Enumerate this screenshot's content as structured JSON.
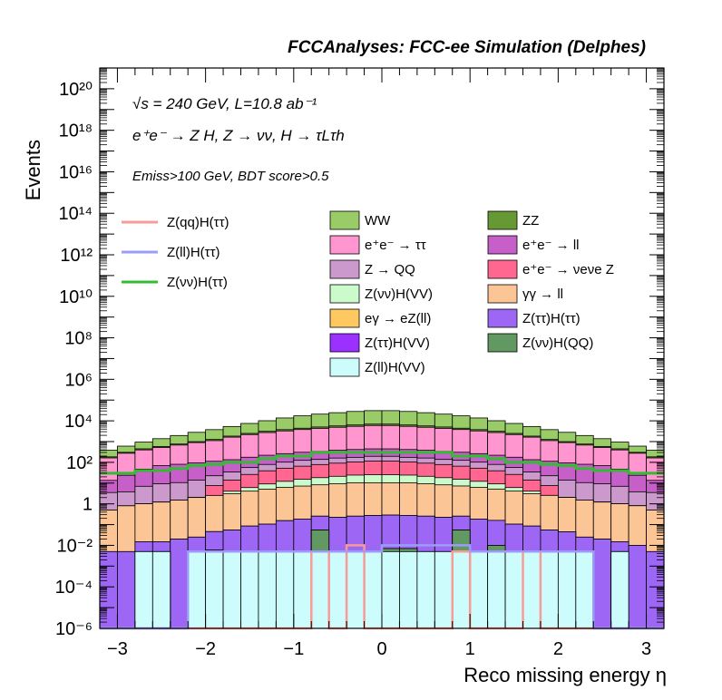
{
  "chart_data": {
    "type": "stacked-histogram",
    "title": "FCCAnalyses: FCC-ee Simulation (Delphes)",
    "annotations": {
      "energy_lumi": "√s = 240 GeV, L=10.8 ab⁻¹",
      "process": "e⁺e⁻ → Z H, Z → νν, H → τLτh",
      "selection": "Emiss>100 GeV, BDT score>0.5"
    },
    "xlabel": "Reco missing energy η",
    "ylabel": "Events",
    "xlim": [
      -3.2,
      3.2
    ],
    "ylim": [
      1e-06,
      1e+21
    ],
    "yscale": "log",
    "x_ticks": [
      "−3",
      "−2",
      "−1",
      "0",
      "1",
      "2",
      "3"
    ],
    "y_ticks": [
      "10⁻⁶",
      "10⁻⁴",
      "10⁻²",
      "1",
      "10²",
      "10⁴",
      "10⁶",
      "10⁸",
      "10¹⁰",
      "10¹²",
      "10¹⁴",
      "10¹⁶",
      "10¹⁸",
      "10²⁰"
    ],
    "n_bins": 32,
    "legend_position": "upper-middle",
    "stack_series": [
      {
        "name": "Z(ll)H(VV)",
        "color": "#ccfcfc",
        "values": [
          1e-06,
          1e-06,
          0.005,
          0.005,
          1e-06,
          0.005,
          0.005,
          0.005,
          0.005,
          0.005,
          0.005,
          0.005,
          0.005,
          0.005,
          0.005,
          0.005,
          0.005,
          0.005,
          0.005,
          0.005,
          0.005,
          0.005,
          0.005,
          0.005,
          0.005,
          0.005,
          0.005,
          0.005,
          1e-06,
          0.005,
          1e-06,
          1e-06
        ]
      },
      {
        "name": "Z(νν)H(QQ)",
        "color": "#629862",
        "values": [
          0,
          0,
          0,
          0,
          0,
          0,
          0,
          0,
          0,
          0,
          0,
          0,
          0.05,
          0,
          0,
          0,
          0.002,
          0.002,
          0,
          0,
          0.05,
          0,
          0.005,
          0,
          0,
          0,
          0,
          0,
          0,
          0,
          0,
          0
        ]
      },
      {
        "name": "Z(ττ)H(VV)",
        "color": "#9b30ff",
        "values": [
          0,
          0,
          0,
          0,
          0,
          0,
          0.001,
          0,
          0,
          0,
          0,
          0,
          0,
          0,
          0,
          0,
          0,
          0,
          0,
          0,
          0,
          0,
          0,
          0,
          0,
          0,
          0,
          0,
          0,
          0,
          0,
          0
        ]
      },
      {
        "name": "Z(ττ)H(ττ)",
        "color": "#9e66f5",
        "values": [
          0.005,
          0.005,
          0.01,
          0.01,
          0.02,
          0.02,
          0.04,
          0.05,
          0.08,
          0.1,
          0.15,
          0.18,
          0.2,
          0.22,
          0.25,
          0.27,
          0.28,
          0.27,
          0.25,
          0.22,
          0.2,
          0.18,
          0.15,
          0.1,
          0.08,
          0.05,
          0.04,
          0.02,
          0.02,
          0.01,
          0.01,
          0.005
        ]
      },
      {
        "name": "eγ → eZ(ll)",
        "color": "#ffc860",
        "values": [
          0,
          0,
          0,
          0,
          0,
          0,
          0,
          0,
          0,
          0,
          0,
          0,
          0,
          0,
          0,
          0,
          0,
          0,
          0,
          0,
          0,
          0,
          0,
          0,
          0,
          0,
          0,
          0,
          0,
          0,
          0,
          0
        ]
      },
      {
        "name": "γγ → ll",
        "color": "#fcc596",
        "values": [
          0.5,
          0.8,
          1,
          1.2,
          1.5,
          2,
          2.5,
          3,
          4,
          5,
          6,
          7,
          8,
          9,
          10,
          10,
          10,
          10,
          9,
          8,
          7,
          6,
          5,
          4,
          3,
          2.5,
          2,
          1.5,
          1.2,
          1,
          0.8,
          0.5
        ]
      },
      {
        "name": "Z(νν)H(VV)",
        "color": "#cbfacb",
        "values": [
          0,
          0,
          0,
          0,
          0,
          0,
          0,
          1,
          2,
          4,
          6,
          8,
          10,
          12,
          14,
          15,
          15,
          14,
          12,
          10,
          8,
          6,
          4,
          2,
          1,
          0,
          0,
          0,
          0,
          0,
          0,
          0
        ]
      },
      {
        "name": "e⁺e⁻ → νeνe Z",
        "color": "#ff6690",
        "values": [
          0,
          0,
          0,
          0,
          0,
          0,
          5,
          10,
          20,
          30,
          40,
          50,
          60,
          70,
          80,
          90,
          90,
          80,
          70,
          60,
          50,
          40,
          30,
          20,
          10,
          5,
          0,
          0,
          0,
          0,
          0,
          0
        ]
      },
      {
        "name": "Z → QQ",
        "color": "#cb99cb",
        "values": [
          3,
          3,
          6,
          8,
          9,
          12,
          15,
          20,
          30,
          40,
          50,
          60,
          60,
          70,
          70,
          80,
          80,
          70,
          70,
          60,
          60,
          50,
          40,
          30,
          20,
          15,
          12,
          9,
          8,
          6,
          3,
          3
        ]
      },
      {
        "name": "e⁺e⁻ → ll",
        "color": "#c65fc7",
        "values": [
          10,
          20,
          40,
          60,
          70,
          80,
          90,
          100,
          120,
          140,
          160,
          180,
          200,
          220,
          240,
          250,
          250,
          240,
          220,
          200,
          180,
          160,
          140,
          120,
          100,
          90,
          80,
          70,
          60,
          40,
          20,
          10
        ]
      },
      {
        "name": "e⁺e⁻ → ττ",
        "color": "#ff96cf",
        "values": [
          150,
          250,
          350,
          450,
          600,
          800,
          1000,
          1500,
          2000,
          2500,
          3000,
          3500,
          4000,
          4500,
          5000,
          5500,
          5500,
          5000,
          4500,
          4000,
          3500,
          3000,
          2500,
          2000,
          1500,
          1000,
          800,
          600,
          450,
          350,
          250,
          150
        ]
      },
      {
        "name": "ZZ",
        "color": "#669933",
        "values": [
          20,
          30,
          50,
          60,
          80,
          100,
          150,
          200,
          300,
          400,
          500,
          600,
          700,
          800,
          900,
          1000,
          1000,
          900,
          800,
          700,
          600,
          500,
          400,
          300,
          200,
          150,
          100,
          80,
          60,
          50,
          30,
          20
        ]
      },
      {
        "name": "WW",
        "color": "#99cb66",
        "values": [
          200,
          300,
          500,
          800,
          1200,
          1800,
          2500,
          3500,
          5000,
          7000,
          10000,
          13000,
          16000,
          19000,
          22000,
          24000,
          24000,
          22000,
          19000,
          16000,
          13000,
          10000,
          7000,
          5000,
          3500,
          2500,
          1800,
          1200,
          800,
          500,
          300,
          200
        ]
      }
    ],
    "signal_series": [
      {
        "name": "Z(qq)H(ττ)",
        "color": "#f89b96",
        "values": [
          1e-09,
          1e-09,
          1e-09,
          1e-09,
          1e-09,
          1e-09,
          1e-09,
          1e-09,
          1e-09,
          1e-09,
          1e-09,
          1e-09,
          0.005,
          1e-09,
          0.01,
          1e-09,
          1e-09,
          1e-09,
          1e-09,
          1e-09,
          0.005,
          1e-09,
          1e-09,
          1e-09,
          0.005,
          1e-09,
          1e-09,
          1e-09,
          1e-09,
          1e-09,
          1e-09,
          1e-09
        ]
      },
      {
        "name": "Z(ll)H(ττ)",
        "color": "#9c9cf8",
        "values": [
          1e-09,
          1e-09,
          1e-09,
          1e-09,
          1e-09,
          0.005,
          0.005,
          0.005,
          0.005,
          0.005,
          0.005,
          0.005,
          0.005,
          0.005,
          0.005,
          0.005,
          0.01,
          0.01,
          0.01,
          0.01,
          0.01,
          0.005,
          0.005,
          0.005,
          0.005,
          0.005,
          0.005,
          0.005,
          1e-09,
          1e-09,
          1e-09,
          1e-09
        ]
      },
      {
        "name": "Z(νν)H(ττ)",
        "color": "#33bb33",
        "values": [
          30,
          30,
          40,
          40,
          50,
          70,
          80,
          100,
          100,
          150,
          200,
          200,
          300,
          300,
          300,
          300,
          300,
          300,
          300,
          300,
          200,
          200,
          150,
          100,
          100,
          80,
          70,
          50,
          40,
          40,
          30,
          30
        ]
      }
    ]
  }
}
